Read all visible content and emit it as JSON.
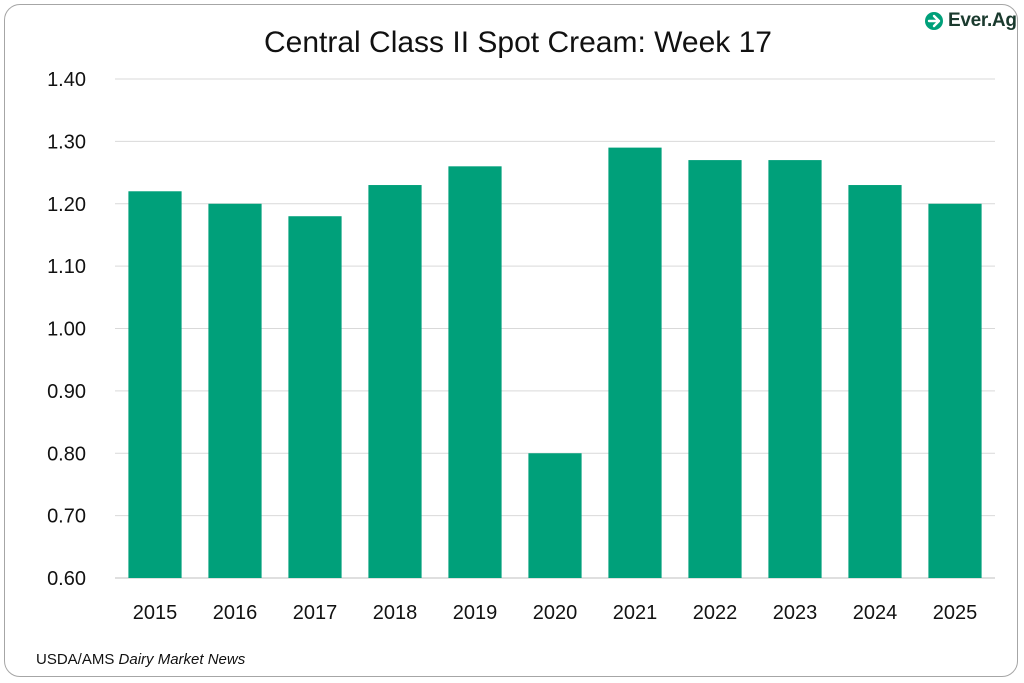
{
  "brand": {
    "name": "Ever.Ag",
    "accent_color": "#00a07a"
  },
  "source_text": "USDA/AMS",
  "source_italic": "Dairy Market News",
  "chart_data": {
    "type": "bar",
    "title": "Central Class II Spot Cream: Week 17",
    "categories": [
      "2015",
      "2016",
      "2017",
      "2018",
      "2019",
      "2020",
      "2021",
      "2022",
      "2023",
      "2024",
      "2025"
    ],
    "values": [
      1.22,
      1.2,
      1.18,
      1.23,
      1.26,
      0.8,
      1.29,
      1.27,
      1.27,
      1.23,
      1.2
    ],
    "ylim": [
      0.6,
      1.4
    ],
    "yticks": [
      "0.60",
      "0.70",
      "0.80",
      "0.90",
      "1.00",
      "1.10",
      "1.20",
      "1.30",
      "1.40"
    ],
    "grid": true,
    "bar_color": "#00a07a"
  }
}
